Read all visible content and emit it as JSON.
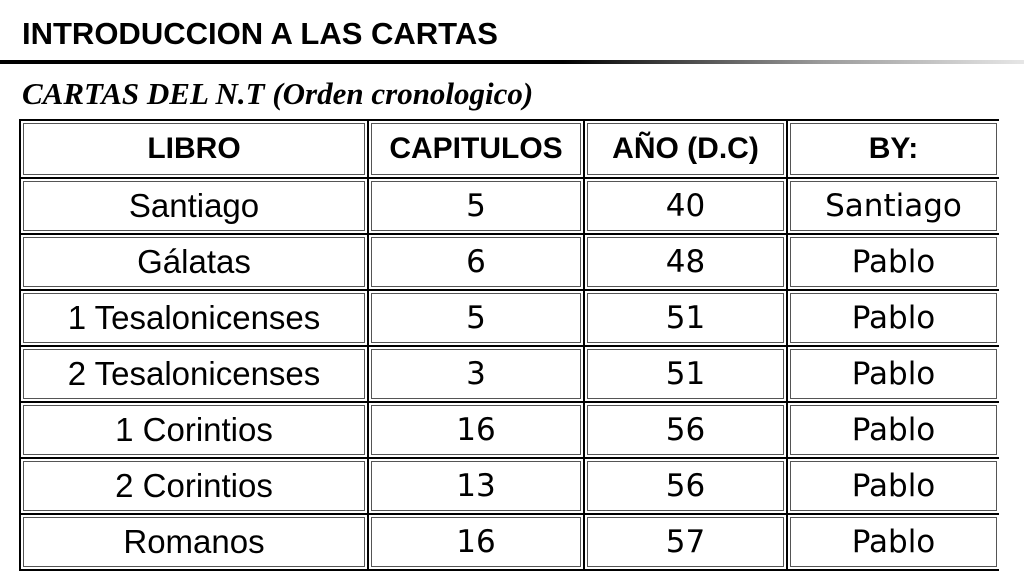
{
  "slide": {
    "title": "INTRODUCCION A LAS CARTAS",
    "subtitle": "CARTAS DEL N.T (Orden cronologico)"
  },
  "table": {
    "headers": {
      "libro": "LIBRO",
      "capitulos": "CAPITULOS",
      "anio": "AÑO (D.C)",
      "by": "BY:"
    },
    "rows": [
      {
        "libro": "Santiago",
        "capitulos": "5",
        "anio": "40",
        "by": "Santiago"
      },
      {
        "libro": "Gálatas",
        "capitulos": "6",
        "anio": "48",
        "by": "Pablo"
      },
      {
        "libro": "1 Tesalonicenses",
        "capitulos": "5",
        "anio": "51",
        "by": "Pablo"
      },
      {
        "libro": "2 Tesalonicenses",
        "capitulos": "3",
        "anio": "51",
        "by": "Pablo"
      },
      {
        "libro": "1 Corintios",
        "capitulos": "16",
        "anio": "56",
        "by": "Pablo"
      },
      {
        "libro": "2 Corintios",
        "capitulos": "13",
        "anio": "56",
        "by": "Pablo"
      },
      {
        "libro": "Romanos",
        "capitulos": "16",
        "anio": "57",
        "by": "Pablo"
      }
    ]
  }
}
